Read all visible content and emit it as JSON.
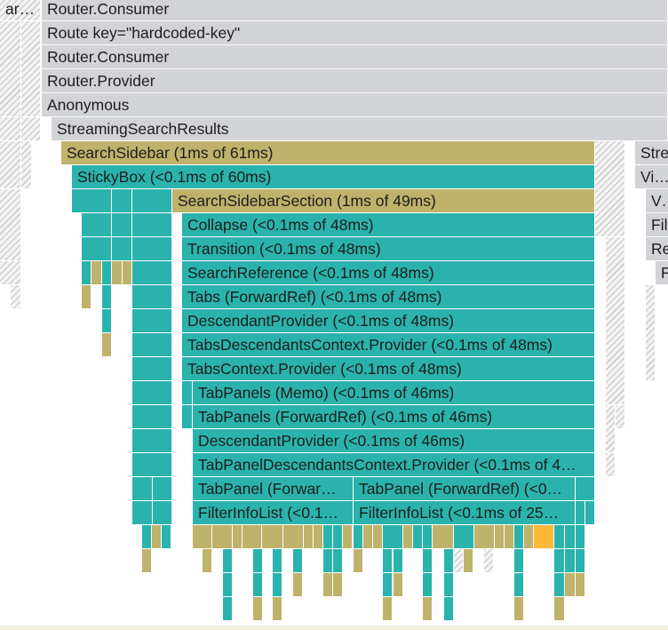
{
  "colors": {
    "gray": "#d2d3d7",
    "teal": "#2ab3ad",
    "olive": "#bfb26a",
    "orange": "#fdb83a",
    "hatch": "#cfcfcf"
  },
  "labels": [
    {
      "id": "router-consumer-top",
      "text": "Router.Consumer"
    },
    {
      "id": "route-key",
      "text": "Route key=\"hardcoded-key\""
    },
    {
      "id": "router-consumer",
      "text": "Router.Consumer"
    },
    {
      "id": "router-provider",
      "text": "Router.Provider"
    },
    {
      "id": "anonymous",
      "text": "Anonymous"
    },
    {
      "id": "streaming-search-results",
      "text": "StreamingSearchResults"
    },
    {
      "id": "search-sidebar",
      "text": "SearchSidebar (1ms of 61ms)"
    },
    {
      "id": "sticky-box",
      "text": "StickyBox (<0.1ms of 60ms)"
    },
    {
      "id": "search-sidebar-section",
      "text": "SearchSidebarSection (1ms of 49ms)"
    },
    {
      "id": "collapse",
      "text": "Collapse (<0.1ms of 48ms)"
    },
    {
      "id": "transition",
      "text": "Transition (<0.1ms of 48ms)"
    },
    {
      "id": "search-reference",
      "text": "SearchReference (<0.1ms of 48ms)"
    },
    {
      "id": "tabs-forwardref",
      "text": "Tabs (ForwardRef) (<0.1ms of 48ms)"
    },
    {
      "id": "descendant-provider-1",
      "text": "DescendantProvider (<0.1ms of 48ms)"
    },
    {
      "id": "tabs-descendants-context",
      "text": "TabsDescendantsContext.Provider (<0.1ms of 48ms)"
    },
    {
      "id": "tabs-context",
      "text": "TabsContext.Provider (<0.1ms of 48ms)"
    },
    {
      "id": "tabpanels-memo",
      "text": "TabPanels (Memo) (<0.1ms of 46ms)"
    },
    {
      "id": "tabpanels-forwardref",
      "text": "TabPanels (ForwardRef) (<0.1ms of 46ms)"
    },
    {
      "id": "descendant-provider-2",
      "text": "DescendantProvider (<0.1ms of 46ms)"
    },
    {
      "id": "tabpanel-descendants-context",
      "text": "TabPanelDescendantsContext.Provider (<0.1ms of 4…"
    },
    {
      "id": "tabpanel-forwardref-1",
      "text": "TabPanel (Forwar…"
    },
    {
      "id": "tabpanel-forwardref-2",
      "text": "TabPanel (ForwardRef) (<0…"
    },
    {
      "id": "filterinfolist-1",
      "text": "FilterInfoList (<0.1…"
    },
    {
      "id": "filterinfolist-2",
      "text": "FilterInfoList (<0.1ms of 25…"
    },
    {
      "id": "stre",
      "text": "Stre"
    },
    {
      "id": "virtu",
      "text": "Virtu"
    },
    {
      "id": "vis",
      "text": "Vis"
    },
    {
      "id": "fil",
      "text": "Fil"
    },
    {
      "id": "re",
      "text": "Re"
    },
    {
      "id": "f",
      "text": "F"
    },
    {
      "id": "left-clipped",
      "text": "arc…"
    }
  ]
}
